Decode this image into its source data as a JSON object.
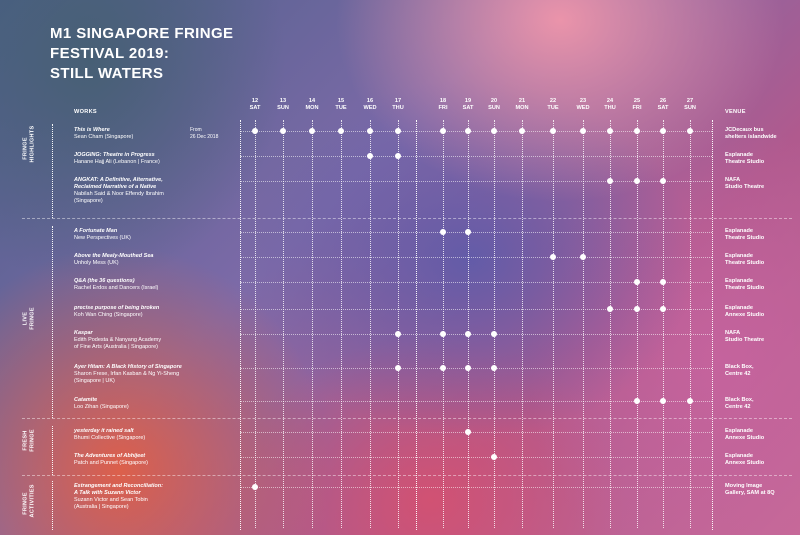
{
  "title": {
    "line1": "M1 SINGAPORE FRINGE",
    "line2": "FESTIVAL 2019:",
    "line3": "STILL WATERS"
  },
  "headers": {
    "works": "WORKS",
    "venue": "VENUE"
  },
  "days": [
    {
      "num": "12",
      "dow": "SAT"
    },
    {
      "num": "13",
      "dow": "SUN"
    },
    {
      "num": "14",
      "dow": "MON"
    },
    {
      "num": "15",
      "dow": "TUE"
    },
    {
      "num": "16",
      "dow": "WED"
    },
    {
      "num": "17",
      "dow": "THU"
    },
    {
      "num": "18",
      "dow": "FRI"
    },
    {
      "num": "19",
      "dow": "SAT"
    },
    {
      "num": "20",
      "dow": "SUN"
    },
    {
      "num": "21",
      "dow": "MON"
    },
    {
      "num": "22",
      "dow": "TUE"
    },
    {
      "num": "23",
      "dow": "WED"
    },
    {
      "num": "24",
      "dow": "THU"
    },
    {
      "num": "25",
      "dow": "FRI"
    },
    {
      "num": "26",
      "dow": "SAT"
    },
    {
      "num": "27",
      "dow": "SUN"
    }
  ],
  "sections": [
    {
      "label": [
        "FRINGE",
        "HIGHLIGHTS"
      ],
      "rows": [
        {
          "title": [
            "This is Where"
          ],
          "credit": [
            "Sean Cham (Singapore)"
          ],
          "note": [
            "From",
            "26 Dec 2018"
          ],
          "venue": [
            "JCDecaux bus",
            "shelters islandwide"
          ],
          "dates": [
            0,
            1,
            2,
            3,
            4,
            5,
            6,
            7,
            8,
            9,
            10,
            11,
            12,
            13,
            14,
            15
          ]
        },
        {
          "title": [
            "JOGGING: Theatre in Progress"
          ],
          "credit": [
            "Hanane Hajj Ali (Lebanon | France)"
          ],
          "venue": [
            "Esplanade",
            "Theatre Studio"
          ],
          "dates": [
            4,
            5
          ]
        },
        {
          "title": [
            "ANGKAT: A Definitive, Alternative,",
            "Reclaimed Narrative of a Native"
          ],
          "credit": [
            "Nabilah Said & Noor Effendy Ibrahim",
            "(Singapore)"
          ],
          "venue": [
            "NAFA",
            "Studio Theatre"
          ],
          "dates": [
            12,
            13,
            14
          ]
        }
      ]
    },
    {
      "label": [
        "LIVE",
        "FRINGE"
      ],
      "rows": [
        {
          "title": [
            "A Fortunate Man"
          ],
          "credit": [
            "New Perspectives (UK)"
          ],
          "venue": [
            "Esplanade",
            "Theatre Studio"
          ],
          "dates": [
            6,
            7
          ]
        },
        {
          "title": [
            "Above the Mealy-Mouthed Sea"
          ],
          "credit": [
            "Unholy Mess (UK)"
          ],
          "venue": [
            "Esplanade",
            "Theatre Studio"
          ],
          "dates": [
            10,
            11
          ]
        },
        {
          "title": [
            "Q&A (the 36 questions)"
          ],
          "credit": [
            "Rachel Erdos and Dancers (Israel)"
          ],
          "venue": [
            "Esplanade",
            "Theatre Studio"
          ],
          "dates": [
            13,
            14
          ]
        },
        {
          "title": [
            "precise purpose of being broken"
          ],
          "credit": [
            "Koh Wan Ching (Singapore)"
          ],
          "venue": [
            "Esplanade",
            "Annexe Studio"
          ],
          "dates": [
            12,
            13,
            14
          ]
        },
        {
          "title": [
            "Kaspar"
          ],
          "credit": [
            "Edith Podesta & Nanyang Academy",
            "of Fine Arts (Australia | Singapore)"
          ],
          "venue": [
            "NAFA",
            "Studio Theatre"
          ],
          "dates": [
            5,
            6,
            7,
            8
          ]
        },
        {
          "title": [
            "Ayer Hitam: A Black History of Singapore"
          ],
          "credit": [
            "Sharon Frese, Irfan Kasban & Ng Yi-Sheng",
            "(Singapore | UK)"
          ],
          "venue": [
            "Black Box,",
            "Centre 42"
          ],
          "dates": [
            5,
            6,
            7,
            8
          ]
        },
        {
          "title": [
            "Catamite"
          ],
          "credit": [
            "Loo Zihan (Singapore)"
          ],
          "venue": [
            "Black Box,",
            "Centre 42"
          ],
          "dates": [
            13,
            14,
            15
          ]
        }
      ]
    },
    {
      "label": [
        "FRESH",
        "FRINGE"
      ],
      "rows": [
        {
          "title": [
            "yesterday it rained salt"
          ],
          "credit": [
            "Bhumi Collective (Singapore)"
          ],
          "venue": [
            "Esplanade",
            "Annexe Studio"
          ],
          "dates": [
            7
          ]
        },
        {
          "title": [
            "The Adventures of Abhijeet"
          ],
          "credit": [
            "Patch and Punnet (Singapore)"
          ],
          "venue": [
            "Esplanade",
            "Annexe Studio"
          ],
          "dates": [
            8
          ]
        }
      ]
    },
    {
      "label": [
        "FRINGE",
        "ACTIVITIES"
      ],
      "rows": [
        {
          "title": [
            "Estrangement and Reconciliation:",
            "A Talk with Suzann Victor"
          ],
          "credit": [
            "Suzann Victor and Sean Tobin",
            "(Australia | Singapore)"
          ],
          "venue": [
            "Moving Image",
            "Gallery, SAM at 8Q"
          ],
          "dates": [
            0
          ]
        }
      ]
    }
  ]
}
